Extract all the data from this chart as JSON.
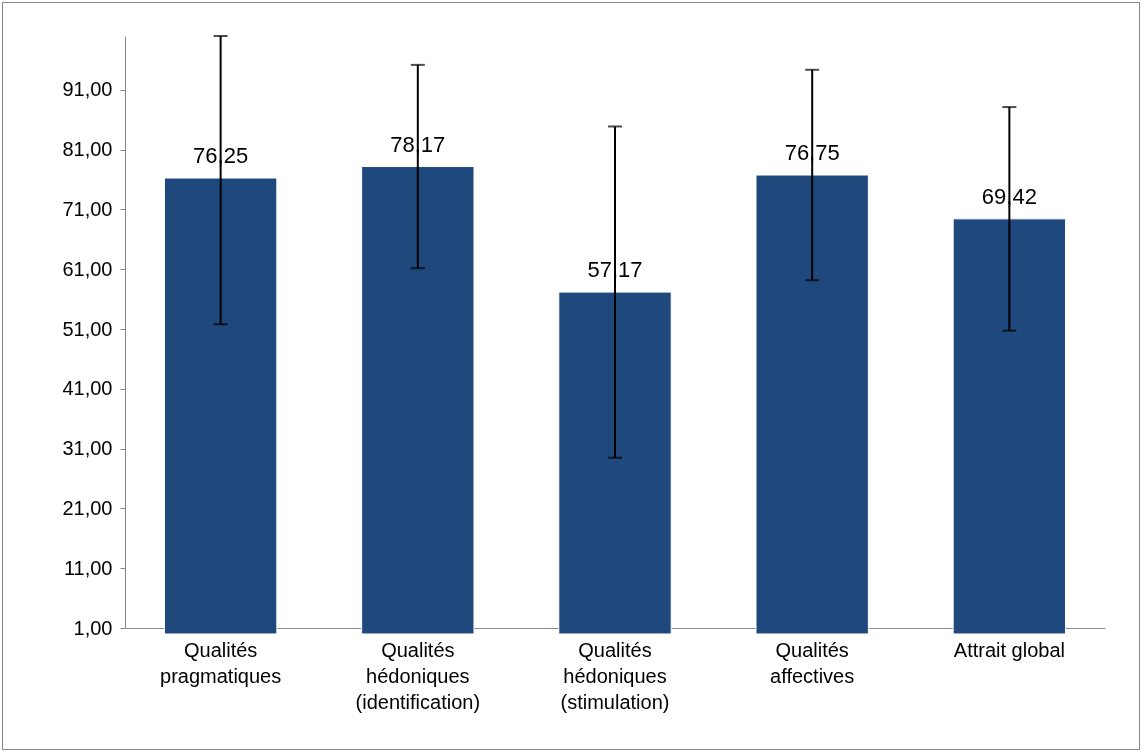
{
  "chart_data": {
    "type": "bar",
    "categories": [
      "Qualités pragmatiques",
      "Qualités hédoniques (identification)",
      "Qualités hédoniques (stimulation)",
      "Qualités affectives",
      "Attrait global"
    ],
    "values": [
      76.25,
      78.17,
      57.17,
      76.75,
      69.42
    ],
    "value_labels": [
      "76,25",
      "78,17",
      "57,17",
      "76,75",
      "69,42"
    ],
    "errors": [
      [
        51.8,
        100
      ],
      17,
      27.7,
      17.6,
      18.7
    ],
    "color": "#1f497d",
    "ylim": [
      1,
      100
    ],
    "yticks": [
      {
        "value": 1,
        "label": "1,00"
      },
      {
        "value": 11,
        "label": "11,00"
      },
      {
        "value": 21,
        "label": "21,00"
      },
      {
        "value": 31,
        "label": "31,00"
      },
      {
        "value": 41,
        "label": "41,00"
      },
      {
        "value": 51,
        "label": "51,00"
      },
      {
        "value": 61,
        "label": "61,00"
      },
      {
        "value": 71,
        "label": "71,00"
      },
      {
        "value": 81,
        "label": "81,00"
      },
      {
        "value": 91,
        "label": "91,00"
      }
    ],
    "grid": false
  }
}
